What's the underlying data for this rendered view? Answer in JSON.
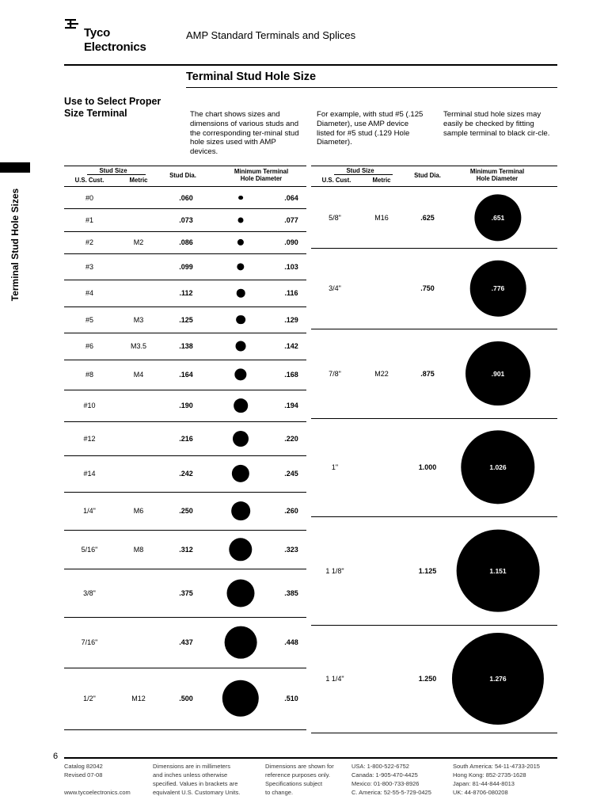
{
  "header": {
    "brand_line1": "Tyco",
    "brand_line2": "Electronics",
    "title": "AMP Standard Terminals and Splices"
  },
  "section_title": "Terminal Stud Hole Size",
  "side_label": "Terminal Stud Hole Sizes",
  "select_heading": "Use to Select Proper Size Terminal",
  "intro": {
    "col1": "The chart shows sizes and dimensions of various studs and the corresponding ter-minal stud hole sizes used with AMP devices.",
    "col2": "For example, with stud #5 (.125 Diameter), use AMP device listed for #5 stud (.129 Hole Diameter).",
    "col3": "Terminal stud hole sizes may easily be checked by fitting sample terminal to black cir-cle."
  },
  "table_headers": {
    "stud_size": "Stud Size",
    "us_cust": "U.S. Cust.",
    "metric": "Metric",
    "stud_dia": "Stud Dia.",
    "min_hole_line1": "Minimum Terminal",
    "min_hole_line2": "Hole Diameter"
  },
  "chart_data": {
    "type": "table",
    "columns": [
      "U.S. Cust.",
      "Metric",
      "Stud Dia.",
      "Minimum Terminal Hole Diameter"
    ],
    "left_rows": [
      {
        "us": "#0",
        "metric": "",
        "dia": ".060",
        "hole": ".064"
      },
      {
        "us": "#1",
        "metric": "",
        "dia": ".073",
        "hole": ".077"
      },
      {
        "us": "#2",
        "metric": "M2",
        "dia": ".086",
        "hole": ".090"
      },
      {
        "us": "#3",
        "metric": "",
        "dia": ".099",
        "hole": ".103"
      },
      {
        "us": "#4",
        "metric": "",
        "dia": ".112",
        "hole": ".116"
      },
      {
        "us": "#5",
        "metric": "M3",
        "dia": ".125",
        "hole": ".129"
      },
      {
        "us": "#6",
        "metric": "M3.5",
        "dia": ".138",
        "hole": ".142"
      },
      {
        "us": "#8",
        "metric": "M4",
        "dia": ".164",
        "hole": ".168"
      },
      {
        "us": "#10",
        "metric": "",
        "dia": ".190",
        "hole": ".194"
      },
      {
        "us": "#12",
        "metric": "",
        "dia": ".216",
        "hole": ".220"
      },
      {
        "us": "#14",
        "metric": "",
        "dia": ".242",
        "hole": ".245"
      },
      {
        "us": "1/4\"",
        "metric": "M6",
        "dia": ".250",
        "hole": ".260"
      },
      {
        "us": "5/16\"",
        "metric": "M8",
        "dia": ".312",
        "hole": ".323"
      },
      {
        "us": "3/8\"",
        "metric": "",
        "dia": ".375",
        "hole": ".385"
      },
      {
        "us": "7/16\"",
        "metric": "",
        "dia": ".437",
        "hole": ".448"
      },
      {
        "us": "1/2\"",
        "metric": "M12",
        "dia": ".500",
        "hole": ".510"
      }
    ],
    "right_rows": [
      {
        "us": "5/8\"",
        "metric": "M16",
        "dia": ".625",
        "hole": ".651"
      },
      {
        "us": "3/4\"",
        "metric": "",
        "dia": ".750",
        "hole": ".776"
      },
      {
        "us": "7/8\"",
        "metric": "M22",
        "dia": ".875",
        "hole": ".901"
      },
      {
        "us": "1\"",
        "metric": "",
        "dia": "1.000",
        "hole": "1.026"
      },
      {
        "us": "1 1/8\"",
        "metric": "",
        "dia": "1.125",
        "hole": "1.151"
      },
      {
        "us": "1 1/4\"",
        "metric": "",
        "dia": "1.250",
        "hole": "1.276"
      }
    ]
  },
  "page_number": "6",
  "footer": {
    "col1": [
      "Catalog 82042",
      "Revised 07-08",
      "",
      "www.tycoelectronics.com"
    ],
    "col2": [
      "Dimensions are in millimeters",
      "and inches unless otherwise",
      "specified. Values in brackets are",
      "equivalent U.S. Customary Units."
    ],
    "col3": [
      "Dimensions are shown for",
      "reference purposes only.",
      "Specifications subject",
      "to change."
    ],
    "col4": [
      "USA: 1-800-522-6752",
      "Canada: 1-905-470-4425",
      "Mexico: 01-800-733-8926",
      "C. America: 52-55-5-729-0425"
    ],
    "col5": [
      "South America: 54-11-4733-2015",
      "Hong Kong: 852-2735-1628",
      "Japan: 81-44-844-8013",
      "UK: 44-8706-080208"
    ]
  }
}
